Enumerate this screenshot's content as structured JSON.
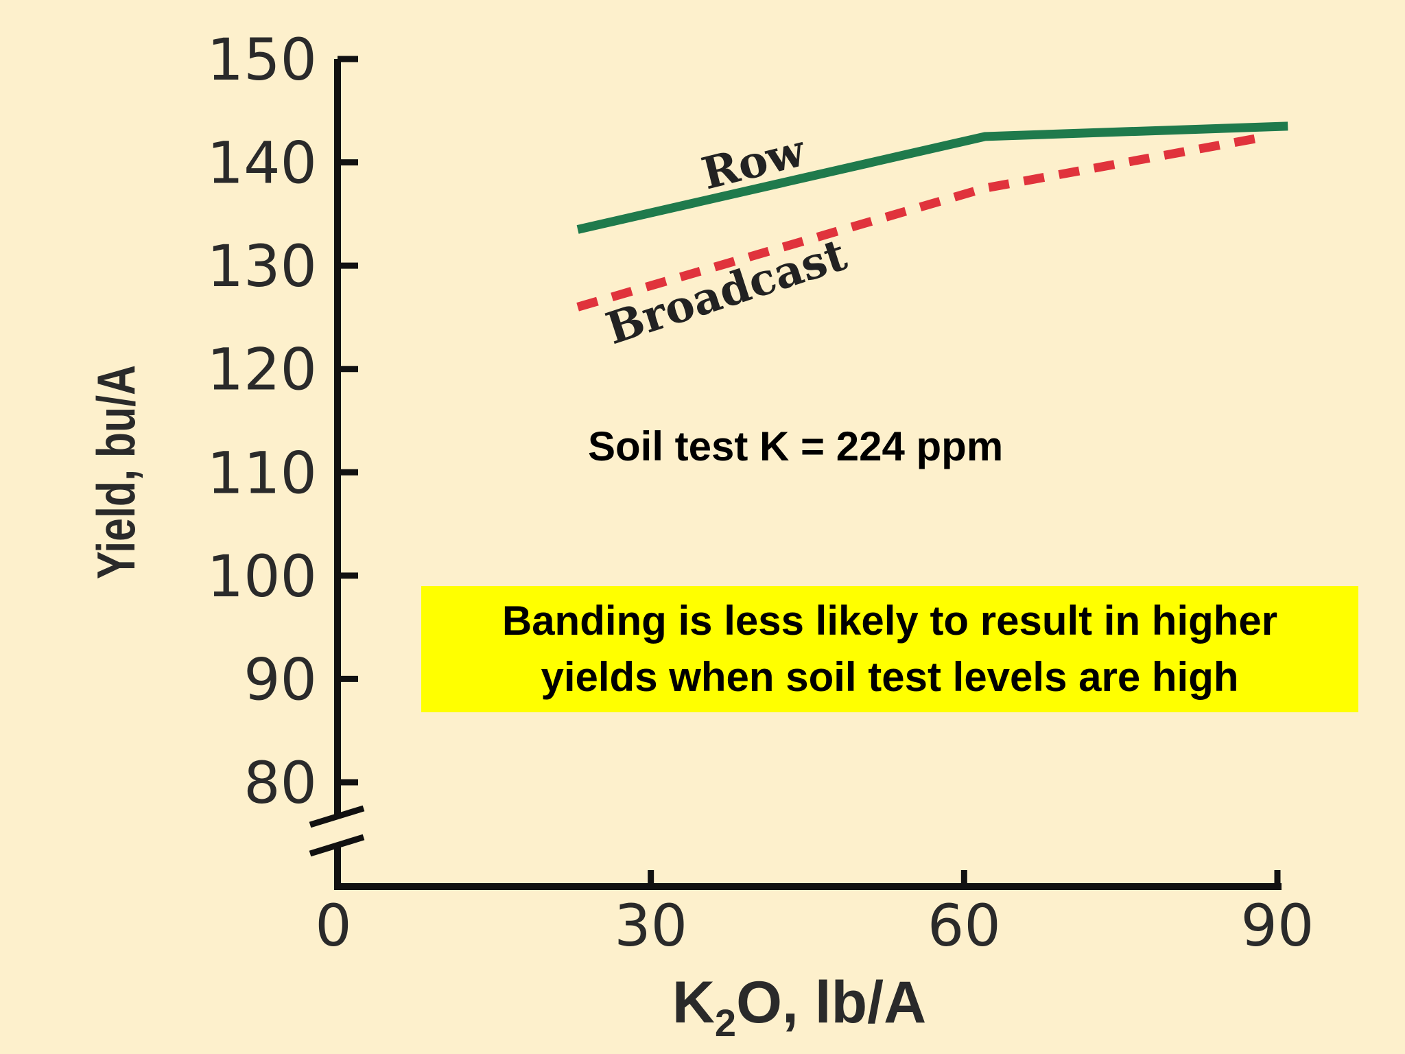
{
  "chart_data": {
    "type": "line",
    "xlabel_main": "K",
    "xlabel_sub": "2",
    "xlabel_rest": "O, lb/A",
    "ylabel": "Yield, bu/A",
    "x_ticks": [
      "0",
      "30",
      "60",
      "90"
    ],
    "y_ticks": [
      "80",
      "90",
      "100",
      "110",
      "120",
      "130",
      "140",
      "150"
    ],
    "xlim": [
      0,
      90
    ],
    "ylim": [
      80,
      150
    ],
    "y_axis_break": true,
    "grid": false,
    "series": [
      {
        "name": "Row",
        "style": "solid",
        "color": "#1f7a4c",
        "x": [
          23,
          62,
          91
        ],
        "y": [
          133.5,
          142.5,
          143.5
        ]
      },
      {
        "name": "Broadcast",
        "style": "dashed",
        "color": "#e0333c",
        "x": [
          23,
          62,
          89
        ],
        "y": [
          126,
          137.5,
          142.5
        ]
      }
    ],
    "annotations": [
      {
        "text": "Soil test K = 224 ppm"
      }
    ]
  },
  "callout": {
    "line1": "Banding is less likely to result in higher",
    "line2": "yields when soil test levels are high"
  },
  "colors": {
    "background": "#fdf0cc",
    "callout_bg": "#ffff00",
    "axis": "#111111"
  }
}
